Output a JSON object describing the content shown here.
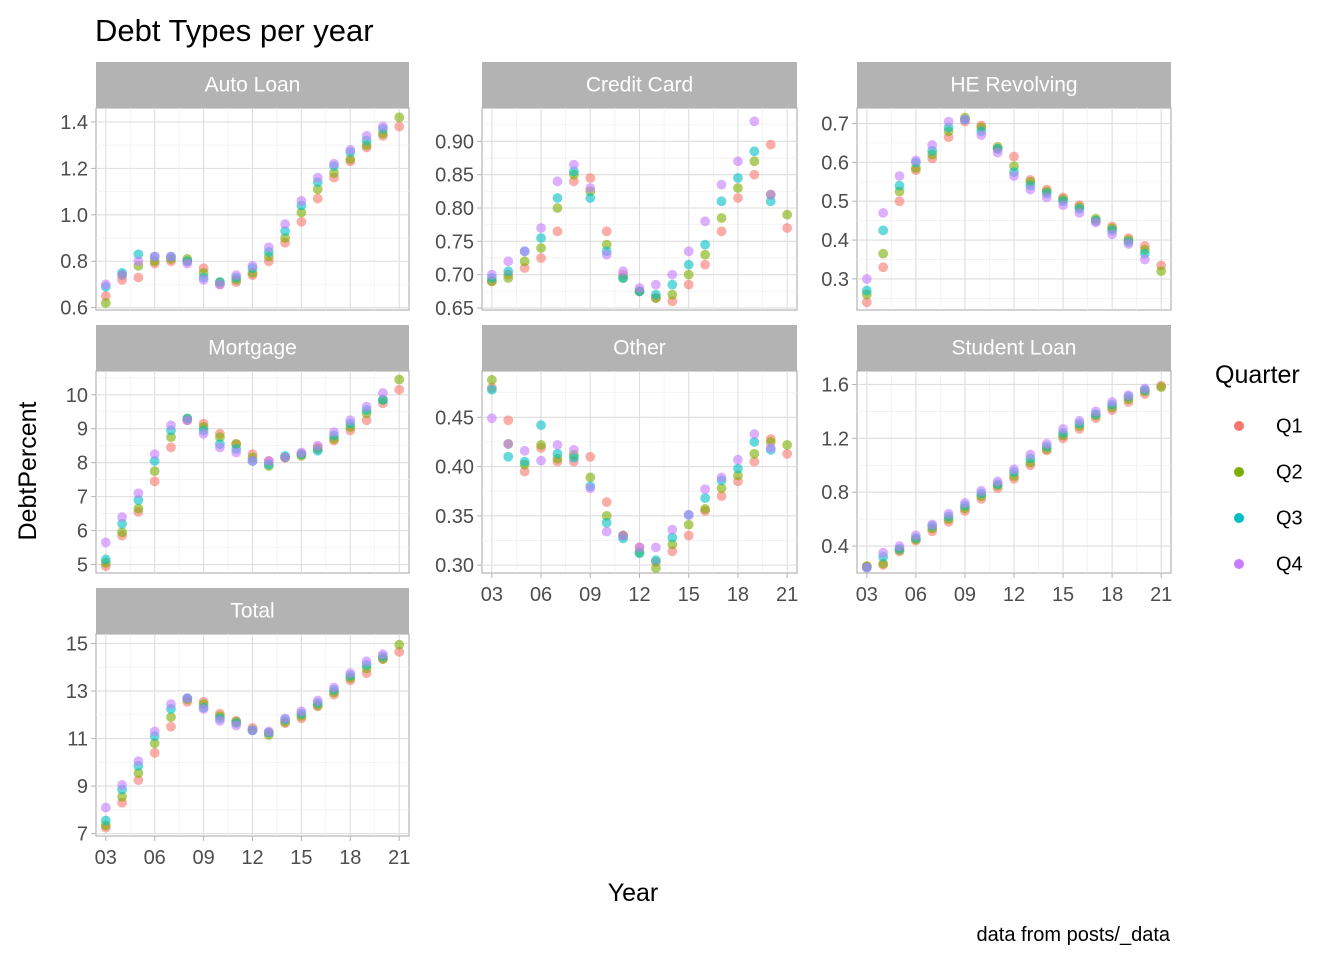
{
  "chart_data": {
    "type": "scatter",
    "title": "Debt Types per year",
    "xlabel": "Year",
    "ylabel": "DebtPercent",
    "caption": "data from posts/_data",
    "legend": {
      "title": "Quarter",
      "placement": "right",
      "entries": [
        {
          "name": "Q1",
          "color": "#F8766D"
        },
        {
          "name": "Q2",
          "color": "#7CAE00"
        },
        {
          "name": "Q3",
          "color": "#00BFC4"
        },
        {
          "name": "Q4",
          "color": "#C77CFF"
        }
      ]
    },
    "years": [
      2003,
      2004,
      2005,
      2006,
      2007,
      2008,
      2009,
      2010,
      2011,
      2012,
      2013,
      2014,
      2015,
      2016,
      2017,
      2018,
      2019,
      2020,
      2021
    ],
    "x_ticks": {
      "labels": [
        "03",
        "06",
        "09",
        "12",
        "15",
        "18",
        "21"
      ],
      "values": [
        2003,
        2006,
        2009,
        2012,
        2015,
        2018,
        2021
      ]
    },
    "x_range": [
      2002.4,
      2021.6
    ],
    "panels": [
      {
        "name": "Auto Loan",
        "ylim": [
          0.59,
          1.46
        ],
        "y_ticks": [
          0.6,
          0.8,
          1.0,
          1.2,
          1.4
        ],
        "y_tick_labels": [
          "0.6",
          "0.8",
          "1.0",
          "1.2",
          "1.4"
        ],
        "series": [
          {
            "name": "Q1",
            "values": [
              0.65,
              0.72,
              0.73,
              0.79,
              0.8,
              0.8,
              0.77,
              0.7,
              0.71,
              0.74,
              0.8,
              0.88,
              0.97,
              1.07,
              1.16,
              1.23,
              1.29,
              1.34,
              1.38
            ]
          },
          {
            "name": "Q2",
            "values": [
              0.62,
              0.74,
              0.78,
              0.8,
              0.81,
              0.81,
              0.75,
              0.71,
              0.72,
              0.75,
              0.82,
              0.9,
              1.01,
              1.11,
              1.18,
              1.24,
              1.3,
              1.35,
              1.42
            ]
          },
          {
            "name": "Q3",
            "values": [
              0.69,
              0.75,
              0.83,
              0.82,
              0.82,
              0.8,
              0.73,
              0.71,
              0.73,
              0.77,
              0.84,
              0.93,
              1.04,
              1.14,
              1.21,
              1.27,
              1.32,
              1.37
            ]
          },
          {
            "name": "Q4",
            "values": [
              0.7,
              0.74,
              0.8,
              0.82,
              0.82,
              0.79,
              0.72,
              0.7,
              0.74,
              0.78,
              0.86,
              0.96,
              1.06,
              1.16,
              1.22,
              1.28,
              1.34,
              1.38
            ]
          }
        ]
      },
      {
        "name": "Credit Card",
        "ylim": [
          0.647,
          0.95
        ],
        "y_ticks": [
          0.65,
          0.7,
          0.75,
          0.8,
          0.85,
          0.9
        ],
        "y_tick_labels": [
          "0.65",
          "0.70",
          "0.75",
          "0.80",
          "0.85",
          "0.90"
        ],
        "series": [
          {
            "name": "Q1",
            "values": [
              0.69,
              0.7,
              0.71,
              0.725,
              0.765,
              0.84,
              0.845,
              0.765,
              0.7,
              0.675,
              0.665,
              0.66,
              0.685,
              0.715,
              0.765,
              0.815,
              0.85,
              0.895,
              0.77
            ]
          },
          {
            "name": "Q2",
            "values": [
              0.69,
              0.695,
              0.72,
              0.74,
              0.8,
              0.85,
              0.825,
              0.745,
              0.695,
              0.675,
              0.665,
              0.67,
              0.7,
              0.73,
              0.785,
              0.83,
              0.87,
              0.82,
              0.79
            ]
          },
          {
            "name": "Q3",
            "values": [
              0.695,
              0.705,
              0.735,
              0.755,
              0.815,
              0.855,
              0.815,
              0.735,
              0.695,
              0.675,
              0.67,
              0.685,
              0.715,
              0.745,
              0.81,
              0.845,
              0.885,
              0.81
            ]
          },
          {
            "name": "Q4",
            "values": [
              0.7,
              0.72,
              0.735,
              0.77,
              0.84,
              0.865,
              0.83,
              0.73,
              0.705,
              0.68,
              0.685,
              0.7,
              0.735,
              0.78,
              0.835,
              0.87,
              0.93,
              0.82
            ]
          }
        ]
      },
      {
        "name": "HE Revolving",
        "ylim": [
          0.22,
          0.74
        ],
        "y_ticks": [
          0.3,
          0.4,
          0.5,
          0.6,
          0.7
        ],
        "y_tick_labels": [
          "0.3",
          "0.4",
          "0.5",
          "0.6",
          "0.7"
        ],
        "series": [
          {
            "name": "Q1",
            "values": [
              0.24,
              0.33,
              0.5,
              0.58,
              0.61,
              0.665,
              0.705,
              0.695,
              0.635,
              0.615,
              0.555,
              0.53,
              0.51,
              0.49,
              0.45,
              0.435,
              0.405,
              0.385,
              0.335
            ]
          },
          {
            "name": "Q2",
            "values": [
              0.26,
              0.365,
              0.525,
              0.585,
              0.62,
              0.68,
              0.715,
              0.69,
              0.64,
              0.59,
              0.55,
              0.525,
              0.505,
              0.485,
              0.455,
              0.43,
              0.4,
              0.375,
              0.32
            ]
          },
          {
            "name": "Q3",
            "values": [
              0.27,
              0.425,
              0.54,
              0.6,
              0.63,
              0.69,
              0.71,
              0.68,
              0.635,
              0.575,
              0.54,
              0.52,
              0.5,
              0.48,
              0.45,
              0.425,
              0.395,
              0.365
            ]
          },
          {
            "name": "Q4",
            "values": [
              0.3,
              0.47,
              0.565,
              0.605,
              0.645,
              0.705,
              0.71,
              0.67,
              0.625,
              0.565,
              0.53,
              0.51,
              0.49,
              0.47,
              0.445,
              0.415,
              0.39,
              0.35
            ]
          }
        ]
      },
      {
        "name": "Mortgage",
        "ylim": [
          4.75,
          10.7
        ],
        "y_ticks": [
          5,
          6,
          7,
          8,
          9,
          10
        ],
        "y_tick_labels": [
          "5",
          "6",
          "7",
          "8",
          "9",
          "10"
        ],
        "series": [
          {
            "name": "Q1",
            "values": [
              4.95,
              5.85,
              6.55,
              7.45,
              8.45,
              9.25,
              9.15,
              8.85,
              8.55,
              8.25,
              8.05,
              8.15,
              8.25,
              8.45,
              8.65,
              8.95,
              9.25,
              9.75,
              10.15
            ]
          },
          {
            "name": "Q2",
            "values": [
              5.05,
              5.95,
              6.65,
              7.75,
              8.75,
              9.3,
              9.05,
              8.75,
              8.55,
              8.15,
              7.9,
              8.15,
              8.2,
              8.4,
              8.7,
              9.05,
              9.45,
              9.85,
              10.45
            ]
          },
          {
            "name": "Q3",
            "values": [
              5.15,
              6.2,
              6.9,
              8.05,
              8.95,
              9.3,
              8.95,
              8.55,
              8.4,
              8.05,
              7.95,
              8.2,
              8.25,
              8.35,
              8.8,
              9.15,
              9.55,
              9.85
            ]
          },
          {
            "name": "Q4",
            "values": [
              5.65,
              6.4,
              7.1,
              8.25,
              9.1,
              9.25,
              8.85,
              8.45,
              8.3,
              8.05,
              8.05,
              8.15,
              8.3,
              8.5,
              8.9,
              9.25,
              9.65,
              10.05
            ]
          }
        ]
      },
      {
        "name": "Other",
        "ylim": [
          0.292,
          0.497
        ],
        "y_ticks": [
          0.3,
          0.35,
          0.4,
          0.45
        ],
        "y_tick_labels": [
          "0.30",
          "0.35",
          "0.40",
          "0.45"
        ],
        "series": [
          {
            "name": "Q1",
            "values": [
              0.48,
              0.447,
              0.395,
              0.419,
              0.405,
              0.405,
              0.41,
              0.364,
              0.33,
              0.318,
              0.303,
              0.314,
              0.33,
              0.355,
              0.37,
              0.385,
              0.405,
              0.428,
              0.413
            ]
          },
          {
            "name": "Q2",
            "values": [
              0.488,
              0.423,
              0.402,
              0.422,
              0.408,
              0.412,
              0.389,
              0.35,
              0.33,
              0.313,
              0.297,
              0.321,
              0.341,
              0.357,
              0.378,
              0.391,
              0.413,
              0.425,
              0.422
            ]
          },
          {
            "name": "Q3",
            "values": [
              0.478,
              0.41,
              0.405,
              0.442,
              0.413,
              0.409,
              0.38,
              0.343,
              0.327,
              0.312,
              0.305,
              0.328,
              0.351,
              0.368,
              0.386,
              0.398,
              0.425,
              0.417
            ]
          },
          {
            "name": "Q4",
            "values": [
              0.449,
              0.423,
              0.416,
              0.406,
              0.422,
              0.417,
              0.378,
              0.334,
              0.33,
              0.318,
              0.318,
              0.336,
              0.351,
              0.377,
              0.389,
              0.407,
              0.433,
              0.419
            ]
          }
        ]
      },
      {
        "name": "Student Loan",
        "ylim": [
          0.2,
          1.7
        ],
        "y_ticks": [
          0.4,
          0.8,
          1.2,
          1.6
        ],
        "y_tick_labels": [
          "0.4",
          "0.8",
          "1.2",
          "1.6"
        ],
        "series": [
          {
            "name": "Q1",
            "values": [
              0.25,
              0.26,
              0.36,
              0.44,
              0.51,
              0.58,
              0.66,
              0.75,
              0.83,
              0.9,
              1.0,
              1.11,
              1.2,
              1.27,
              1.35,
              1.41,
              1.47,
              1.53,
              1.59
            ]
          },
          {
            "name": "Q2",
            "values": [
              0.25,
              0.27,
              0.37,
              0.45,
              0.53,
              0.6,
              0.68,
              0.77,
              0.85,
              0.92,
              1.02,
              1.12,
              1.22,
              1.29,
              1.37,
              1.43,
              1.49,
              1.55,
              1.58
            ]
          },
          {
            "name": "Q3",
            "values": [
              0.24,
              0.32,
              0.38,
              0.46,
              0.55,
              0.62,
              0.7,
              0.79,
              0.86,
              0.95,
              1.05,
              1.14,
              1.24,
              1.31,
              1.38,
              1.45,
              1.51,
              1.56
            ]
          },
          {
            "name": "Q4",
            "values": [
              0.24,
              0.35,
              0.4,
              0.48,
              0.56,
              0.64,
              0.72,
              0.81,
              0.88,
              0.97,
              1.08,
              1.16,
              1.27,
              1.33,
              1.4,
              1.47,
              1.52,
              1.57
            ]
          }
        ]
      },
      {
        "name": "Total",
        "ylim": [
          6.9,
          15.4
        ],
        "y_ticks": [
          7,
          9,
          11,
          13,
          15
        ],
        "y_tick_labels": [
          "7",
          "9",
          "11",
          "13",
          "15"
        ],
        "series": [
          {
            "name": "Q1",
            "values": [
              7.25,
              8.3,
              9.25,
              10.4,
              11.5,
              12.55,
              12.55,
              12.05,
              11.75,
              11.45,
              11.25,
              11.65,
              11.85,
              12.35,
              12.85,
              13.45,
              13.75,
              14.35,
              14.65
            ]
          },
          {
            "name": "Q2",
            "values": [
              7.35,
              8.55,
              9.55,
              10.8,
              11.9,
              12.65,
              12.45,
              11.95,
              11.7,
              11.35,
              11.15,
              11.7,
              11.95,
              12.4,
              12.95,
              13.55,
              13.95,
              14.35,
              14.95
            ]
          },
          {
            "name": "Q3",
            "values": [
              7.55,
              8.85,
              9.85,
              11.1,
              12.25,
              12.7,
              12.3,
              11.85,
              11.65,
              11.35,
              11.25,
              11.8,
              12.05,
              12.5,
              13.05,
              13.65,
              14.1,
              14.45
            ]
          },
          {
            "name": "Q4",
            "values": [
              8.1,
              9.05,
              10.05,
              11.3,
              12.45,
              12.7,
              12.25,
              11.75,
              11.55,
              11.35,
              11.3,
              11.85,
              12.15,
              12.6,
              13.15,
              13.75,
              14.25,
              14.55
            ]
          }
        ]
      }
    ]
  }
}
